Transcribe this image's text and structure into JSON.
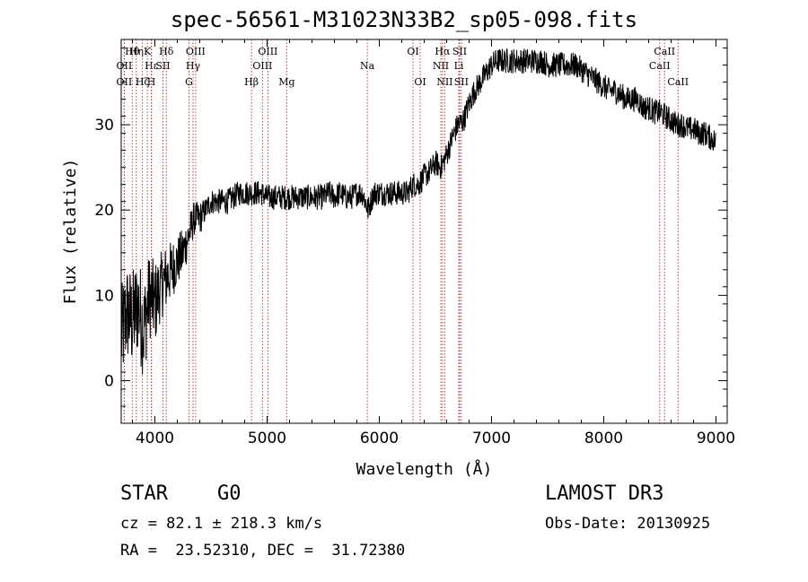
{
  "chart_data": {
    "type": "line",
    "title": "spec-56561-M31023N33B2_sp05-098.fits",
    "xlabel": "Wavelength (Å)",
    "ylabel": "Flux (relative)",
    "xlim": [
      3700,
      9100
    ],
    "ylim": [
      -5,
      40
    ],
    "x_ticks": [
      4000,
      5000,
      6000,
      7000,
      8000,
      9000
    ],
    "y_ticks": [
      0,
      10,
      20,
      30
    ],
    "x_tick_labels": [
      "4000",
      "5000",
      "6000",
      "7000",
      "8000",
      "9000"
    ],
    "y_tick_labels": [
      "0",
      "10",
      "20",
      "30"
    ],
    "series": [
      {
        "name": "flux",
        "color": "#000000",
        "x": [
          3700,
          3750,
          3800,
          3850,
          3900,
          3950,
          4000,
          4050,
          4100,
          4150,
          4200,
          4250,
          4300,
          4350,
          4400,
          4450,
          4500,
          4550,
          4600,
          4650,
          4700,
          4750,
          4800,
          4850,
          4900,
          4950,
          5000,
          5050,
          5100,
          5150,
          5200,
          5250,
          5300,
          5350,
          5400,
          5450,
          5500,
          5550,
          5600,
          5650,
          5700,
          5750,
          5800,
          5850,
          5900,
          5950,
          6000,
          6050,
          6100,
          6150,
          6200,
          6250,
          6300,
          6350,
          6400,
          6450,
          6500,
          6550,
          6600,
          6650,
          6700,
          6750,
          6800,
          6850,
          6900,
          6950,
          7000,
          7050,
          7100,
          7150,
          7200,
          7250,
          7300,
          7350,
          7400,
          7450,
          7500,
          7550,
          7600,
          7650,
          7700,
          7750,
          7800,
          7850,
          7900,
          7950,
          8000,
          8050,
          8100,
          8150,
          8200,
          8250,
          8300,
          8350,
          8400,
          8450,
          8500,
          8550,
          8600,
          8650,
          8700,
          8750,
          8800,
          8850,
          8900,
          8950,
          9000
        ],
        "y": [
          5,
          8,
          7,
          9,
          6,
          10,
          9,
          11,
          12,
          13,
          14,
          15,
          17,
          19,
          19,
          20,
          21,
          21,
          21,
          21,
          21.5,
          22,
          22,
          22,
          22,
          22,
          21.5,
          21.5,
          21.5,
          21.5,
          21.5,
          21.5,
          21.5,
          21.5,
          21.5,
          21.5,
          21.5,
          22,
          21.5,
          22,
          21.5,
          21.5,
          22,
          22,
          20,
          22,
          22,
          22,
          22,
          22,
          22,
          22,
          23,
          23,
          24,
          24.5,
          25.5,
          25,
          26.5,
          28.5,
          30,
          30.5,
          32.5,
          34,
          35,
          36,
          37,
          37.5,
          37.5,
          37.5,
          37.5,
          37.5,
          37.5,
          37.5,
          37.5,
          37.5,
          37,
          37,
          37,
          37,
          37,
          37,
          36.5,
          36,
          35.5,
          35,
          34.5,
          34,
          34,
          33.5,
          33,
          33,
          33,
          32,
          32,
          31.5,
          31.5,
          31,
          30.5,
          30,
          30,
          29.5,
          29.5,
          29,
          29,
          28.5,
          28
        ],
        "noise_amplitude": [
          6,
          6,
          6,
          6,
          6,
          5,
          5,
          4,
          4,
          3.5,
          3,
          3,
          2.5,
          2,
          2,
          1.5,
          1.5,
          1.5,
          1.5,
          1.5,
          1.5,
          1.5,
          1.5,
          1.5,
          1.5,
          1.5,
          1.5,
          1.5,
          1.5,
          1.5,
          1.5,
          1.5,
          1.5,
          1.5,
          1.5,
          1.5,
          1.5,
          1.5,
          1.5,
          1.5,
          1.5,
          1.5,
          1.5,
          1.5,
          1.5,
          1.5,
          1.5,
          1.5,
          1.5,
          1.5,
          1.5,
          1.5,
          1.5,
          1.5,
          1.5,
          1.5,
          1.5,
          1.5,
          1.5,
          1.5,
          1.5,
          1.5,
          1.5,
          1.5,
          1.5,
          1.5,
          1.5,
          1.5,
          1.5,
          1.5,
          1.5,
          1.5,
          1.5,
          1.5,
          1.5,
          1.5,
          1.5,
          1.5,
          1.5,
          1.5,
          1.5,
          1.5,
          1.5,
          1.5,
          1.5,
          1.5,
          1.5,
          1.5,
          1.5,
          1.5,
          1.5,
          1.5,
          1.5,
          1.5,
          1.5,
          1.5,
          1.5,
          1.5,
          1.5,
          1.5,
          1.5,
          1.5,
          1.5,
          1.5,
          1.5,
          1.5,
          1.5
        ]
      }
    ],
    "line_markers": {
      "color": "#a83030",
      "lines": [
        {
          "wavelength": 3727,
          "label": "OII",
          "row": 2
        },
        {
          "wavelength": 3727,
          "label": "OII",
          "row": 3
        },
        {
          "wavelength": 3798,
          "label": "Hθ",
          "row": 1
        },
        {
          "wavelength": 3835,
          "label": "Hη",
          "row": 1
        },
        {
          "wavelength": 3889,
          "label": "Hζ",
          "row": 3
        },
        {
          "wavelength": 3933,
          "label": "K",
          "row": 1
        },
        {
          "wavelength": 3970,
          "label": "Hε",
          "row": 2
        },
        {
          "wavelength": 3968,
          "label": "H",
          "row": 3
        },
        {
          "wavelength": 4072,
          "label": "SII",
          "row": 2
        },
        {
          "wavelength": 4102,
          "label": "Hδ",
          "row": 1
        },
        {
          "wavelength": 4304,
          "label": "G",
          "row": 3
        },
        {
          "wavelength": 4340,
          "label": "Hγ",
          "row": 2
        },
        {
          "wavelength": 4363,
          "label": "OIII",
          "row": 1
        },
        {
          "wavelength": 4861,
          "label": "Hβ",
          "row": 3
        },
        {
          "wavelength": 4959,
          "label": "OIII",
          "row": 2
        },
        {
          "wavelength": 5007,
          "label": "OIII",
          "row": 1
        },
        {
          "wavelength": 5175,
          "label": "Mg",
          "row": 3
        },
        {
          "wavelength": 5893,
          "label": "Na",
          "row": 2
        },
        {
          "wavelength": 6300,
          "label": "OI",
          "row": 1
        },
        {
          "wavelength": 6364,
          "label": "OI",
          "row": 3
        },
        {
          "wavelength": 6548,
          "label": "NII",
          "row": 2
        },
        {
          "wavelength": 6563,
          "label": "Hα",
          "row": 1
        },
        {
          "wavelength": 6583,
          "label": "NII",
          "row": 3
        },
        {
          "wavelength": 6708,
          "label": "Li",
          "row": 2
        },
        {
          "wavelength": 6716,
          "label": "SII",
          "row": 1
        },
        {
          "wavelength": 6731,
          "label": "SII",
          "row": 3
        },
        {
          "wavelength": 8498,
          "label": "CaII",
          "row": 2
        },
        {
          "wavelength": 8542,
          "label": "CaII",
          "row": 1
        },
        {
          "wavelength": 8662,
          "label": "CaII",
          "row": 3
        }
      ]
    }
  },
  "info": {
    "object_class": "STAR",
    "subclass": "G0",
    "survey": "LAMOST DR3",
    "cz": "cz = 82.1 ± 218.3 km/s",
    "obs_date": "Obs-Date: 20130925",
    "radec": "RA =  23.52310, DEC =  31.72380"
  }
}
